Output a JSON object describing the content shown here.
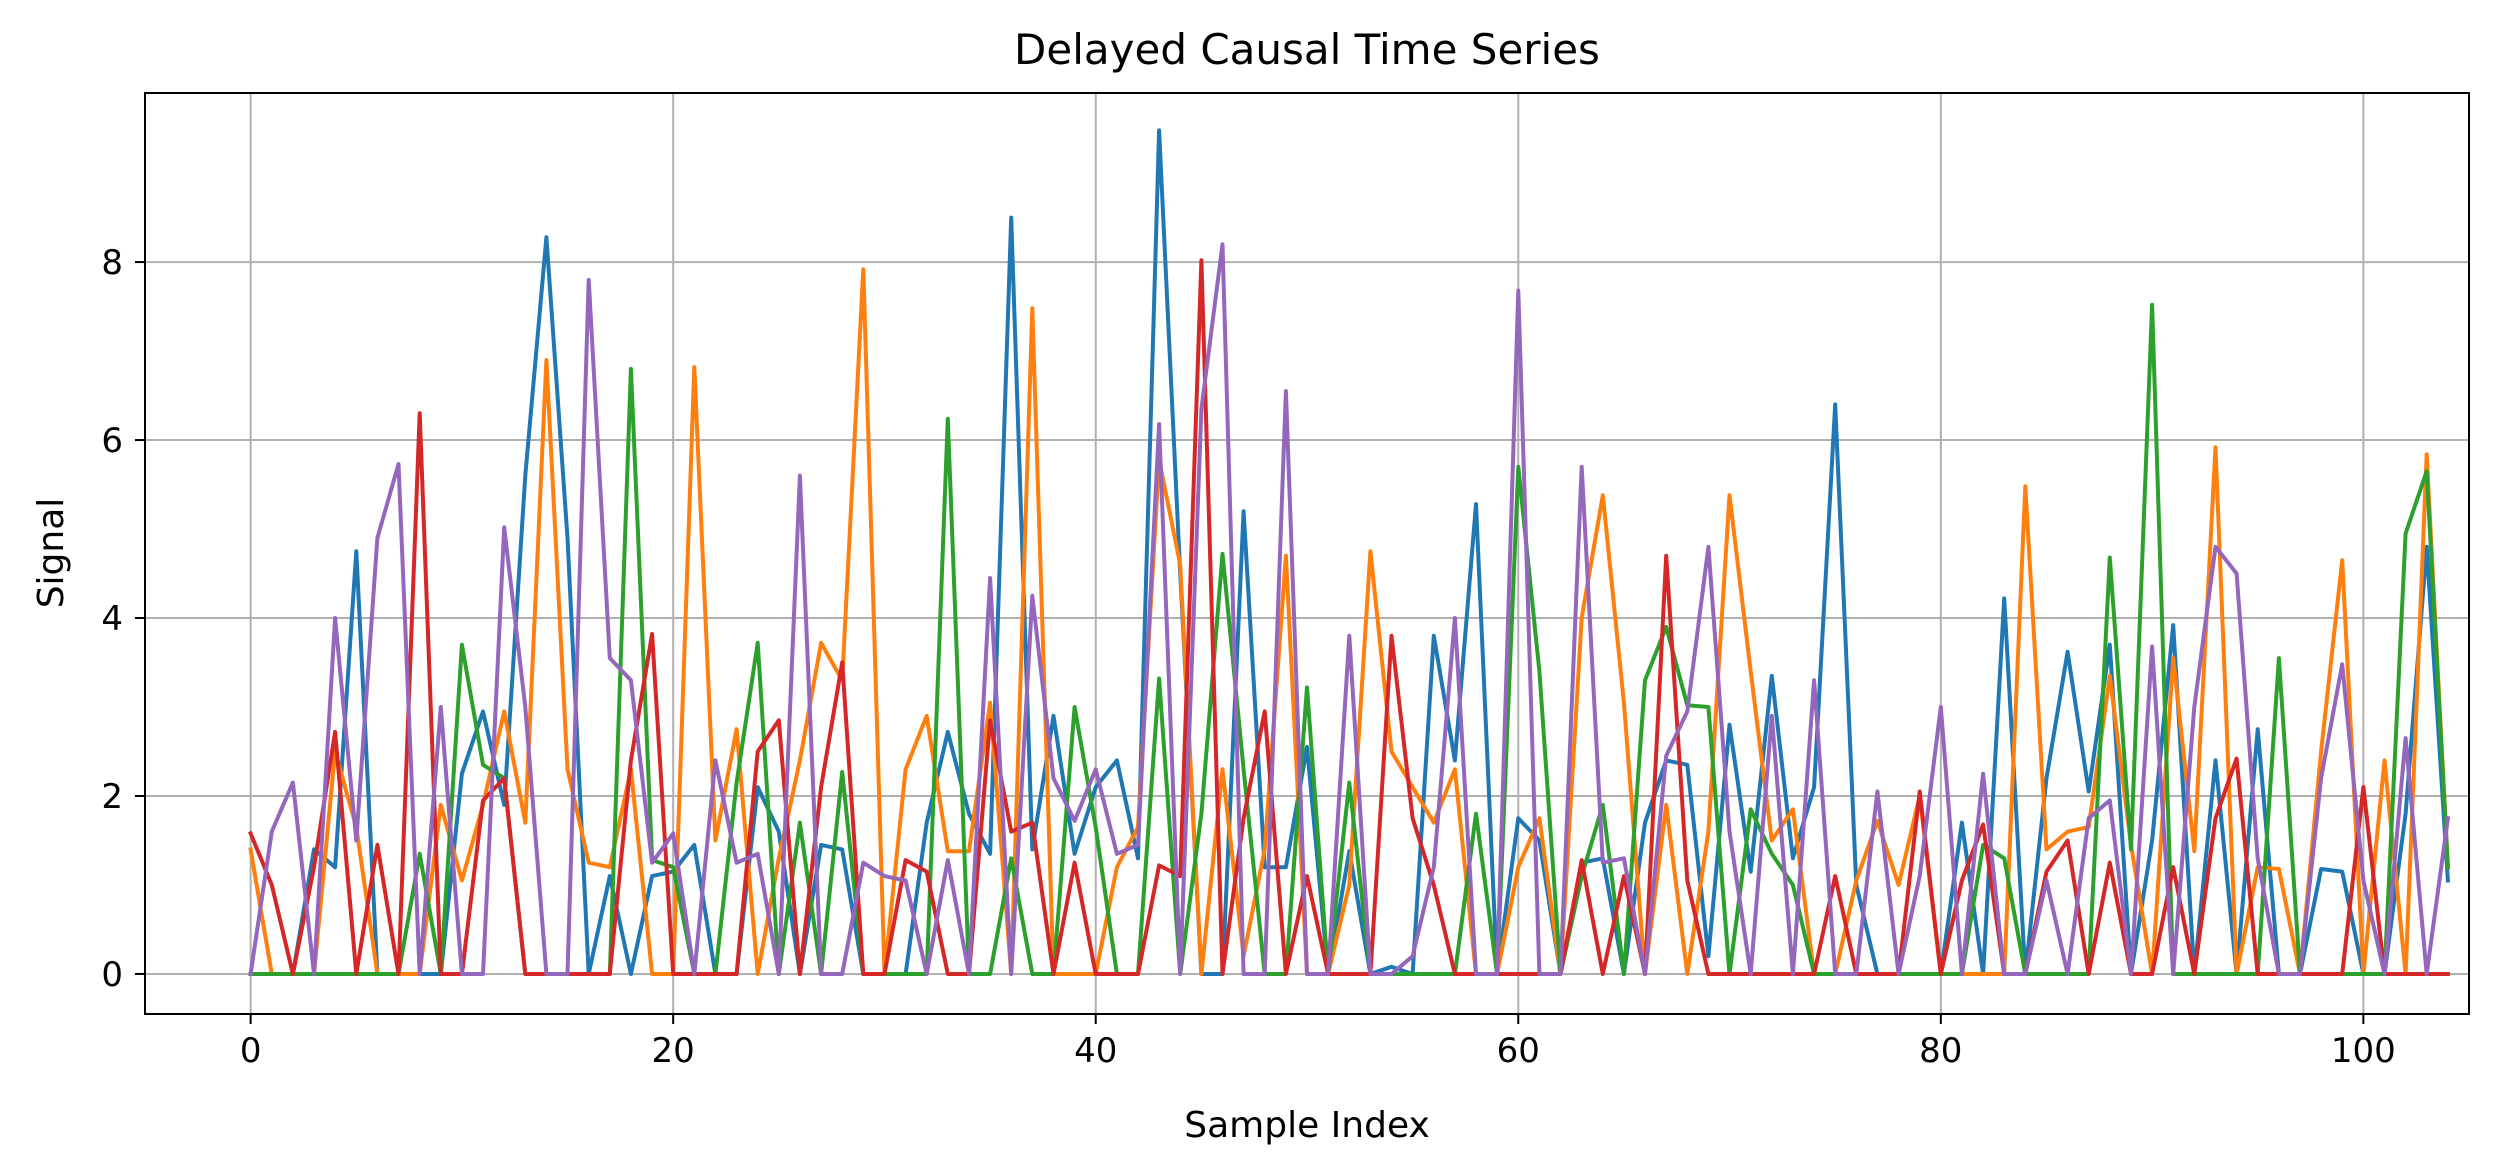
{
  "chart_data": {
    "type": "line",
    "title": "Delayed Causal Time Series",
    "xlabel": "Sample Index",
    "ylabel": "Signal",
    "xlim": [
      -5,
      105
    ],
    "ylim": [
      -0.45,
      9.9
    ],
    "xticks": [
      0,
      20,
      40,
      60,
      80,
      100
    ],
    "yticks": [
      0,
      2,
      4,
      6,
      8
    ],
    "grid": true,
    "legend": "none",
    "x": [
      0,
      1,
      2,
      3,
      4,
      5,
      6,
      7,
      8,
      9,
      10,
      11,
      12,
      13,
      14,
      15,
      16,
      17,
      18,
      19,
      20,
      21,
      22,
      23,
      24,
      25,
      26,
      27,
      28,
      29,
      30,
      31,
      32,
      33,
      34,
      35,
      36,
      37,
      38,
      39,
      40,
      41,
      42,
      43,
      44,
      45,
      46,
      47,
      48,
      49,
      50,
      51,
      52,
      53,
      54,
      55,
      56,
      57,
      58,
      59,
      60,
      61,
      62,
      63,
      64,
      65,
      66,
      67,
      68,
      69,
      70,
      71,
      72,
      73,
      74,
      75,
      76,
      77,
      78,
      79,
      80,
      81,
      82,
      83,
      84,
      85,
      86,
      87,
      88,
      89,
      90,
      91,
      92,
      93,
      94,
      95,
      96,
      97,
      98,
      99,
      100,
      101,
      102,
      103,
      104
    ],
    "series": [
      {
        "color": "#1f77b4",
        "values": [
          0,
          0,
          0,
          1.4,
          1.2,
          4.75,
          0,
          0,
          0,
          0,
          2.25,
          2.95,
          1.9,
          5.6,
          8.28,
          4.9,
          0,
          1.1,
          0,
          1.1,
          1.15,
          1.45,
          0,
          0,
          2.1,
          1.6,
          0,
          1.45,
          1.4,
          0,
          0,
          0,
          1.7,
          2.72,
          1.8,
          1.35,
          8.5,
          1.4,
          2.9,
          1.35,
          2.1,
          2.4,
          1.3,
          9.48,
          4.5,
          0,
          0,
          5.2,
          1.2,
          1.2,
          2.55,
          0,
          1.38,
          0,
          0.08,
          0,
          3.8,
          2.4,
          5.28,
          0,
          1.75,
          1.5,
          0,
          1.25,
          1.3,
          0,
          1.7,
          2.4,
          2.35,
          0.2,
          2.8,
          1.15,
          3.35,
          1.3,
          2.1,
          6.4,
          1.0,
          0,
          0,
          0,
          0,
          1.7,
          0,
          4.22,
          0,
          2.2,
          3.62,
          2.05,
          3.7,
          0,
          1.5,
          3.92,
          0,
          2.4,
          0,
          2.75,
          0,
          0,
          1.18,
          1.15,
          0,
          0,
          1.8,
          4.8,
          1.05
        ]
      },
      {
        "color": "#ff7f0e",
        "values": [
          1.4,
          0,
          0,
          0,
          2.5,
          1.65,
          0,
          0,
          0,
          1.9,
          1.05,
          1.9,
          2.95,
          1.7,
          6.9,
          2.3,
          1.25,
          1.2,
          2.3,
          0,
          0,
          6.82,
          1.5,
          2.75,
          0,
          1.3,
          2.4,
          3.72,
          3.3,
          7.92,
          0,
          2.3,
          2.9,
          1.38,
          1.38,
          3.05,
          0,
          7.48,
          0,
          0,
          0,
          1.2,
          1.65,
          5.78,
          4.6,
          0,
          2.3,
          0.2,
          1.4,
          4.7,
          0,
          0,
          1.0,
          4.75,
          2.5,
          2.1,
          1.7,
          2.3,
          0,
          0,
          1.2,
          1.75,
          0,
          4.0,
          5.38,
          3.05,
          0,
          1.9,
          0,
          1.6,
          5.38,
          3.4,
          1.5,
          1.85,
          0,
          0,
          1.05,
          1.72,
          1.0,
          2.0,
          0,
          0,
          0,
          0,
          5.48,
          1.4,
          1.6,
          1.65,
          3.35,
          1.45,
          0,
          3.55,
          1.38,
          5.92,
          0,
          1.2,
          1.18,
          0,
          2.5,
          4.65,
          0,
          2.4,
          0,
          5.84,
          1.2
        ]
      },
      {
        "color": "#2ca02c",
        "values": [
          0,
          0,
          0,
          0,
          0,
          0,
          0,
          0,
          1.35,
          0,
          3.7,
          2.35,
          2.2,
          0,
          0,
          0,
          0,
          0,
          6.8,
          1.28,
          1.2,
          0,
          0,
          2.15,
          3.72,
          0,
          1.7,
          0,
          2.27,
          0,
          0,
          0,
          0,
          6.24,
          0,
          0,
          1.3,
          0,
          0,
          3.0,
          1.65,
          0,
          0,
          3.32,
          0,
          1.8,
          4.72,
          2.3,
          0,
          0,
          3.22,
          0,
          2.15,
          0,
          0,
          0,
          0,
          0,
          1.8,
          0,
          5.7,
          3.4,
          0,
          1.1,
          1.9,
          0,
          3.3,
          3.9,
          3.02,
          3.0,
          0,
          1.85,
          1.35,
          1.0,
          0,
          0,
          0,
          0,
          0,
          0,
          0,
          0,
          1.45,
          1.3,
          0,
          0,
          0,
          0,
          4.68,
          1.4,
          7.52,
          0,
          0,
          0,
          0,
          0,
          3.55,
          0,
          0,
          0,
          0,
          0,
          4.95,
          5.65,
          1.2
        ]
      },
      {
        "color": "#d62728",
        "values": [
          1.58,
          1.0,
          0,
          1.2,
          2.72,
          0,
          1.45,
          0,
          6.3,
          0,
          0,
          1.95,
          2.2,
          0,
          0,
          0,
          0,
          0,
          2.4,
          3.82,
          0,
          0,
          0,
          0,
          2.5,
          2.85,
          0,
          2.1,
          3.5,
          0,
          0,
          1.28,
          1.15,
          0,
          0,
          2.85,
          1.6,
          1.7,
          0,
          1.25,
          0,
          0,
          0,
          1.22,
          1.1,
          8.02,
          0,
          1.75,
          2.95,
          0,
          1.1,
          0,
          0,
          0,
          3.8,
          1.75,
          1.0,
          0,
          0,
          0,
          0,
          0,
          0,
          1.28,
          0,
          1.1,
          0,
          4.7,
          1.05,
          0,
          0,
          0,
          0,
          0,
          0,
          1.1,
          0,
          0,
          0,
          2.05,
          0,
          1.05,
          1.68,
          0,
          0,
          1.15,
          1.5,
          0,
          1.25,
          0,
          0,
          1.2,
          0,
          1.75,
          2.42,
          0,
          0,
          0,
          0,
          0,
          2.1,
          0,
          0,
          0,
          0
        ]
      },
      {
        "color": "#9467bd",
        "values": [
          0,
          1.6,
          2.15,
          0,
          4.0,
          1.5,
          4.9,
          5.73,
          0,
          3.0,
          0,
          0,
          5.02,
          3.0,
          0,
          0,
          7.8,
          3.55,
          3.3,
          1.25,
          1.58,
          0,
          2.4,
          1.25,
          1.35,
          0,
          5.6,
          0,
          0,
          1.25,
          1.1,
          1.05,
          0,
          1.28,
          0,
          4.45,
          0,
          4.25,
          2.2,
          1.72,
          2.3,
          1.35,
          1.45,
          6.18,
          0,
          6.35,
          8.2,
          0,
          0,
          6.55,
          0,
          0,
          3.8,
          0,
          0,
          0.2,
          1.2,
          4.0,
          0,
          0,
          7.68,
          0,
          0,
          5.7,
          1.25,
          1.3,
          0,
          2.45,
          2.95,
          4.8,
          1.6,
          0,
          2.9,
          0,
          3.3,
          0,
          0,
          2.05,
          0,
          1.1,
          3.0,
          0,
          2.25,
          0,
          0,
          1.05,
          0,
          1.75,
          1.95,
          0,
          3.68,
          0,
          3.0,
          4.8,
          4.5,
          1.3,
          0,
          0,
          2.2,
          3.48,
          1.05,
          0,
          2.65,
          0,
          1.75
        ]
      }
    ]
  }
}
